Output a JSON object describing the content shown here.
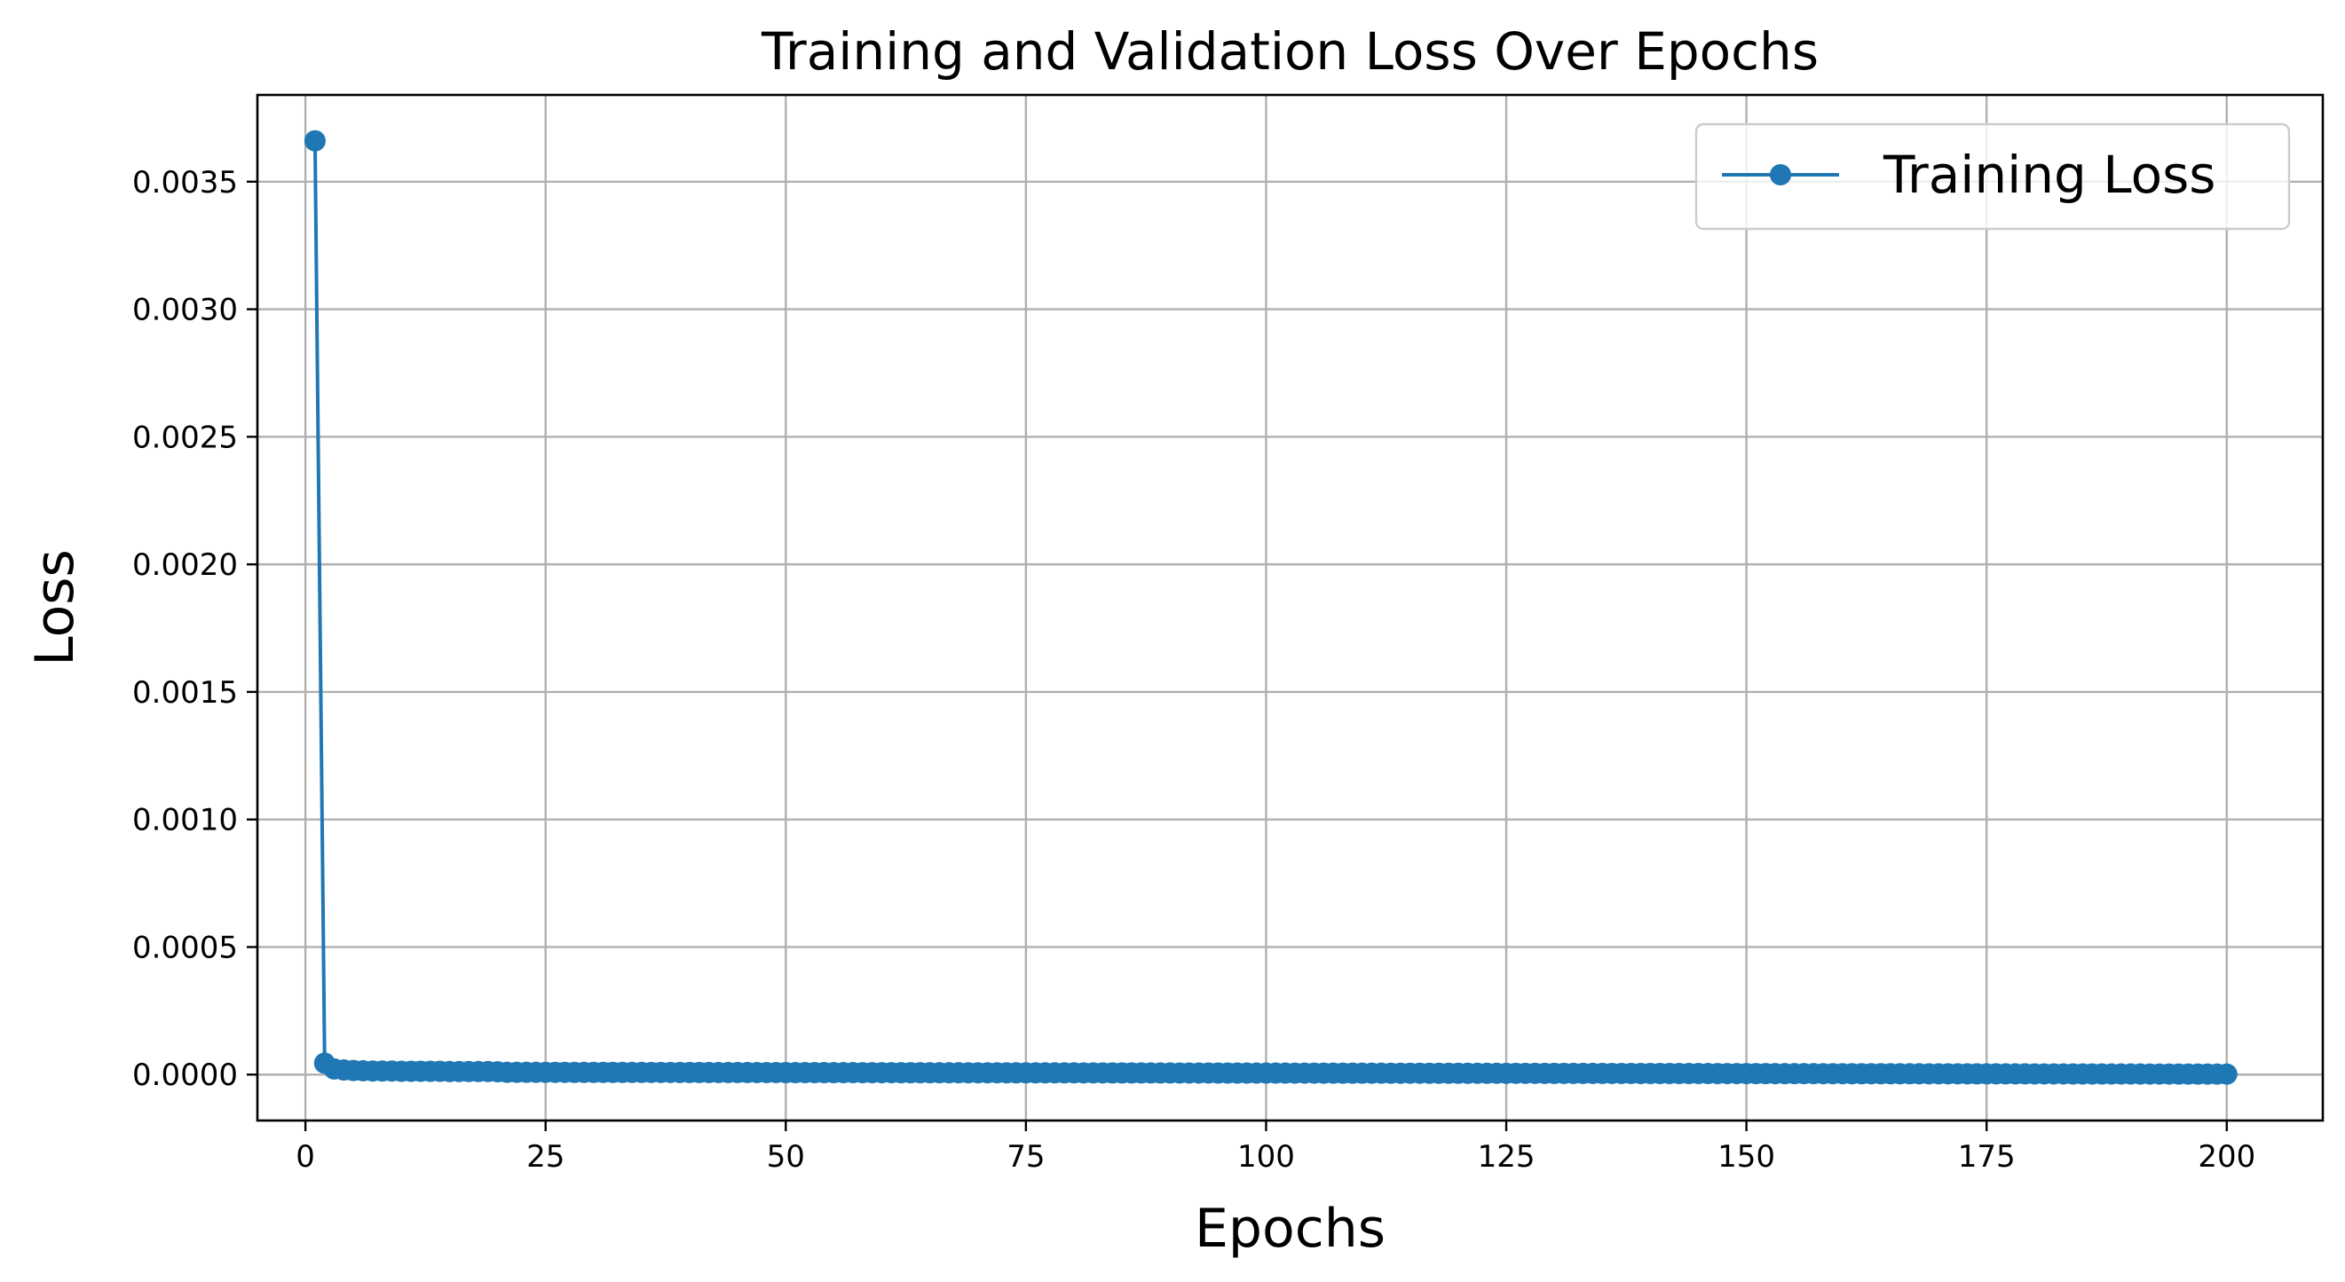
{
  "chart_data": {
    "type": "line",
    "title": "Training and Validation Loss Over Epochs",
    "xlabel": "Epochs",
    "ylabel": "Loss",
    "xlim": [
      -5,
      210
    ],
    "ylim": [
      -0.00018,
      0.00384
    ],
    "xticks": [
      0,
      25,
      50,
      75,
      100,
      125,
      150,
      175,
      200
    ],
    "yticks": [
      0.0,
      0.0005,
      0.001,
      0.0015,
      0.002,
      0.0025,
      0.003,
      0.0035
    ],
    "xtick_labels": [
      "0",
      "25",
      "50",
      "75",
      "100",
      "125",
      "150",
      "175",
      "200"
    ],
    "ytick_labels": [
      "0.0000",
      "0.0005",
      "0.0010",
      "0.0015",
      "0.0020",
      "0.0025",
      "0.0030",
      "0.0035"
    ],
    "grid": true,
    "legend_position": "top-right",
    "series": [
      {
        "name": "Training Loss",
        "color": "#1f77b4",
        "marker": "circle",
        "x_start": 1,
        "x_end": 200,
        "values_head": [
          0.00366,
          4.5e-05,
          2.2e-05,
          1.8e-05,
          1.6e-05,
          1.5e-05,
          1.4e-05,
          1.4e-05,
          1.4e-05,
          1.3e-05,
          1.3e-05,
          1.3e-05,
          1.3e-05,
          1.3e-05,
          1.2e-05,
          1.2e-05,
          1.2e-05,
          1.2e-05,
          1.2e-05,
          1.1e-05
        ],
        "tail_start_value": 9e-06,
        "tail_end_value": 2e-06
      }
    ]
  }
}
